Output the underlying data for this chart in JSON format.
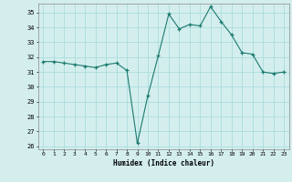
{
  "xlabel": "Humidex (Indice chaleur)",
  "x_values": [
    0,
    1,
    2,
    3,
    4,
    5,
    6,
    7,
    8,
    9,
    10,
    11,
    12,
    13,
    14,
    15,
    16,
    17,
    18,
    19,
    20,
    21,
    22,
    23
  ],
  "y_values": [
    31.7,
    31.7,
    31.6,
    31.5,
    31.4,
    31.3,
    31.5,
    31.6,
    31.1,
    26.2,
    29.4,
    32.1,
    34.9,
    33.9,
    34.2,
    34.1,
    35.4,
    34.4,
    33.5,
    32.3,
    32.2,
    31.0,
    30.9,
    31.0
  ],
  "ylim": [
    25.8,
    35.6
  ],
  "yticks": [
    26,
    27,
    28,
    29,
    30,
    31,
    32,
    33,
    34,
    35
  ],
  "xlim": [
    -0.5,
    23.5
  ],
  "xticks": [
    0,
    1,
    2,
    3,
    4,
    5,
    6,
    7,
    8,
    9,
    10,
    11,
    12,
    13,
    14,
    15,
    16,
    17,
    18,
    19,
    20,
    21,
    22,
    23
  ],
  "line_color": "#1a7a6e",
  "marker_color": "#1a7a6e",
  "bg_color": "#d4eeee",
  "grid_color": "#aadddd",
  "figsize": [
    3.2,
    2.0
  ],
  "dpi": 100
}
